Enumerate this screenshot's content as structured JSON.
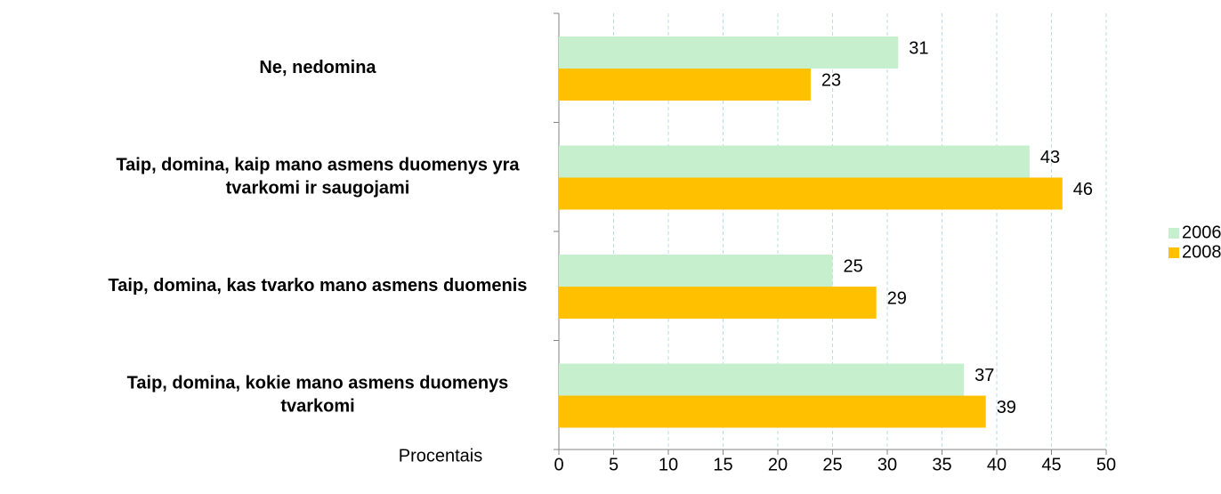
{
  "chart_data": {
    "type": "barh",
    "categories": [
      "Ne, nedomina",
      "Taip, domina, kaip mano asmens duomenys yra tvarkomi ir saugojami",
      "Taip, domina, kas tvarko mano asmens duomenis",
      "Taip, domina, kokie mano asmens duomenys tvarkomi"
    ],
    "series": [
      {
        "name": "2006",
        "color": "#c6efce",
        "values": [
          31,
          43,
          25,
          37
        ]
      },
      {
        "name": "2008",
        "color": "#ffc000",
        "values": [
          23,
          46,
          29,
          39
        ]
      }
    ],
    "xlabel": "Procentais",
    "xlim": [
      0,
      50
    ],
    "xticks": [
      0,
      5,
      10,
      15,
      20,
      25,
      30,
      35,
      40,
      45,
      50
    ],
    "grid": true,
    "legend": "right"
  }
}
